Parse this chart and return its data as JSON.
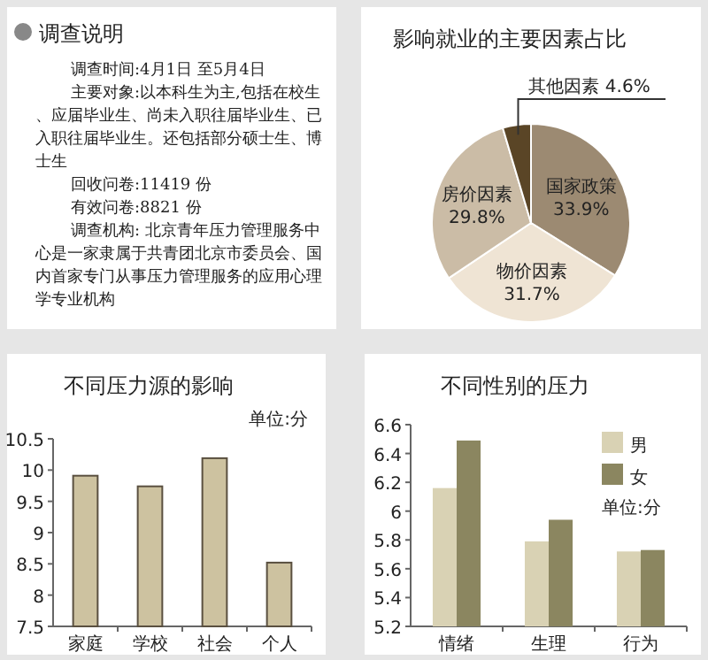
{
  "chart_data": [
    {
      "type": "other",
      "title": "调查说明",
      "annotations": [
        "调查时间:4月1日 至5月4日",
        "主要对象:以本科生为主,包括在校生、应届毕业生、尚未入职往届毕业生、已入职往届毕业生。还包括部分硕士生、博士生",
        "回收问卷:11419 份",
        "有效问卷:8821 份",
        "调查机构: 北京青年压力管理服务中心是一家隶属于共青团北京市委员会、国内首家专门从事压力管理服务的应用心理学专业机构"
      ]
    },
    {
      "type": "pie",
      "title": "影响就业的主要因素占比",
      "categories": [
        "国家政策",
        "物价因素",
        "房价因素",
        "其他因素"
      ],
      "values": [
        33.9,
        31.7,
        29.8,
        4.6
      ],
      "value_labels": [
        "33.9%",
        "31.7%",
        "29.8%",
        "4.6%"
      ],
      "colors": [
        "#9c8a72",
        "#efe4d4",
        "#cbbca6",
        "#5a4526"
      ]
    },
    {
      "type": "bar",
      "title": "不同压力源的影响",
      "categories": [
        "家庭",
        "学校",
        "社会",
        "个人"
      ],
      "values": [
        9.91,
        9.74,
        10.19,
        8.52
      ],
      "color": "#cdc2a0",
      "ylim": [
        7.5,
        10.5
      ],
      "yticks": [
        7.5,
        8,
        8.5,
        9,
        9.5,
        10,
        10.5
      ],
      "annotations": [
        "单位:分"
      ]
    },
    {
      "type": "bar",
      "title": "不同性别的压力",
      "categories": [
        "情绪",
        "生理",
        "行为"
      ],
      "series": [
        {
          "name": "男",
          "color": "#d9d2b4",
          "values": [
            6.16,
            5.79,
            5.72
          ]
        },
        {
          "name": "女",
          "color": "#8b8660",
          "values": [
            6.49,
            5.94,
            5.73
          ]
        }
      ],
      "ylim": [
        5.2,
        6.6
      ],
      "yticks": [
        5.2,
        5.4,
        5.6,
        5.8,
        6,
        6.2,
        6.4,
        6.6
      ],
      "legend": "top right",
      "annotations": [
        "单位:分"
      ]
    }
  ]
}
